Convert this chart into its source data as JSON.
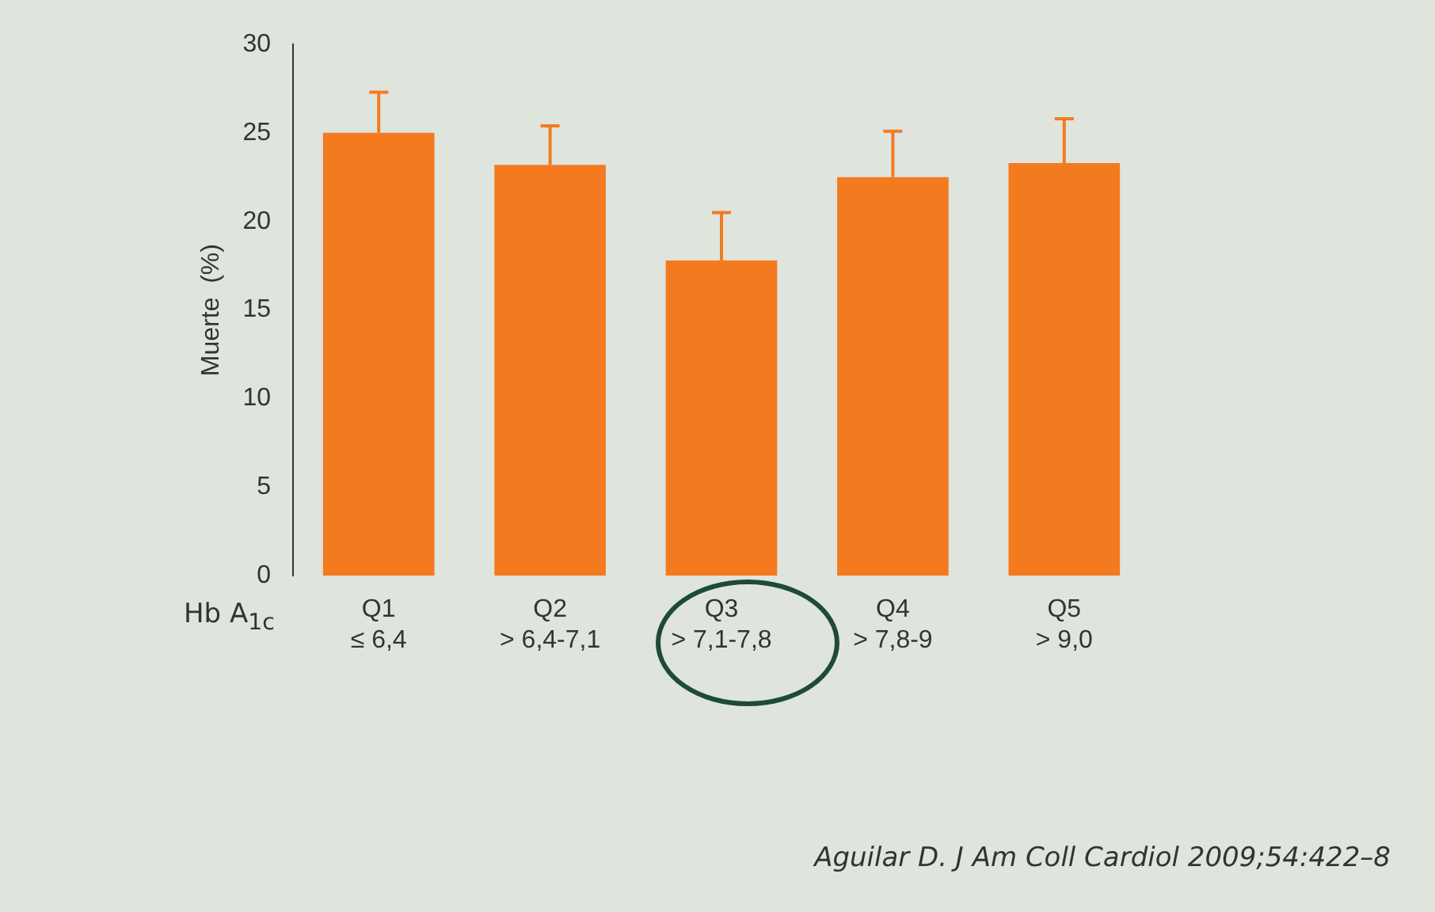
{
  "chart_data": {
    "type": "bar",
    "categories": [
      "Q1\n≤ 6,4",
      "Q2\n> 6,4-7,1",
      "Q3\n> 7,1-7,8",
      "Q4\n> 7,8-9",
      "Q5\n> 9,0"
    ],
    "values": [
      25.0,
      23.2,
      17.8,
      22.5,
      23.3
    ],
    "errors": [
      [
        25.0,
        27.3
      ],
      [
        23.2,
        25.4
      ],
      [
        17.8,
        20.5
      ],
      [
        22.5,
        25.1
      ],
      [
        23.3,
        25.8
      ]
    ],
    "color": "#f47a20",
    "ylabel": "Muerte  (%)",
    "xlabel": "Hb A$_{1c}$",
    "ylim": [
      0,
      30
    ],
    "yticks": [
      0,
      5,
      10,
      15,
      20,
      25,
      30
    ],
    "grid": false,
    "legend": false,
    "annotations": [
      "Aguilar D. J Am Coll Cardiol 2009;54:422–8"
    ]
  }
}
